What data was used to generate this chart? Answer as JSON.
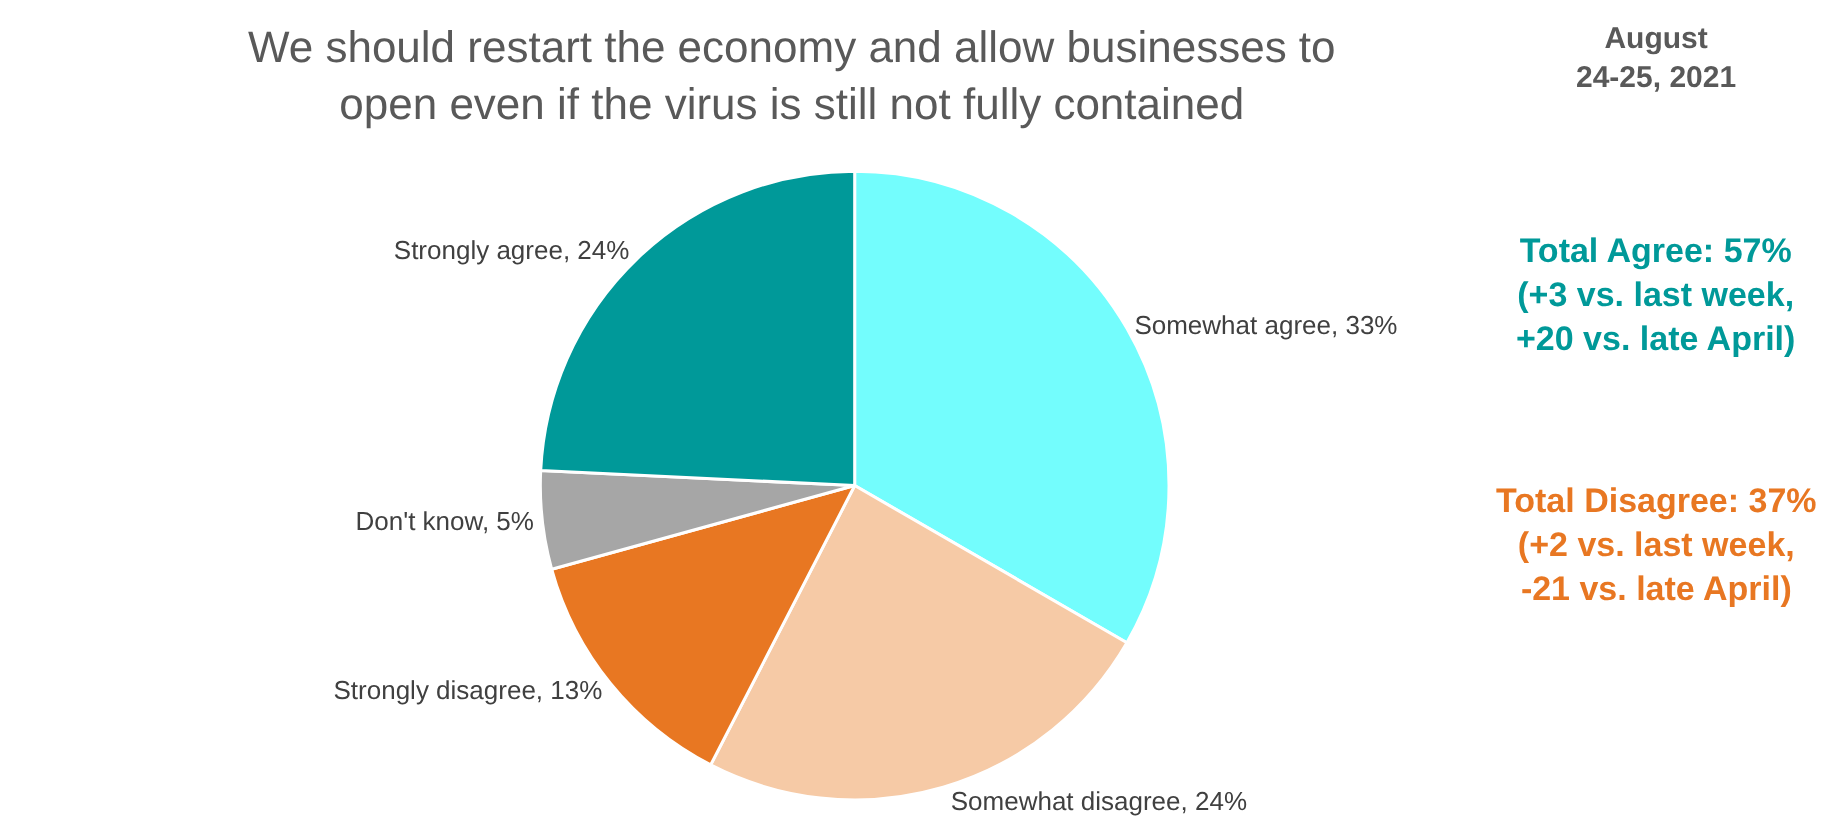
{
  "chart_data": {
    "type": "pie",
    "title": "We should restart the economy and allow businesses to open even if the virus is still not fully contained",
    "categories": [
      "Somewhat agree",
      "Somewhat disagree",
      "Strongly disagree",
      "Don't know",
      "Strongly agree"
    ],
    "values": [
      33,
      24,
      13,
      5,
      24
    ],
    "value_labels": [
      "33%",
      "24%",
      "13%",
      "5%",
      "24%"
    ],
    "colors": [
      "#73fdfd",
      "#f6caa6",
      "#e87722",
      "#a6a6a6",
      "#009999"
    ],
    "legend": false,
    "annotations": [
      "August 24-25, 2021",
      "Total Agree: 57% (+3 vs. last week, +20 vs. late April)",
      "Total Disagree: 37% (+2 vs. last week, -21 vs. late April)"
    ]
  }
}
